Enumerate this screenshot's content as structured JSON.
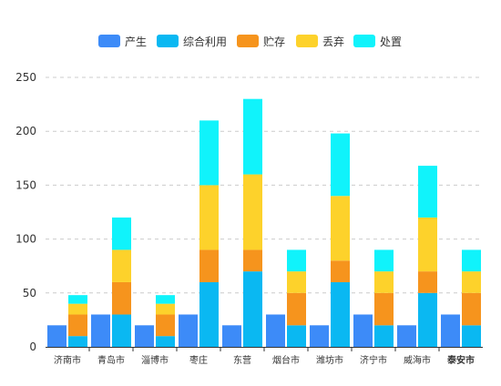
{
  "chart_data": {
    "type": "bar",
    "stacked": true,
    "legend_position": "top",
    "grid": true,
    "colors": {
      "produce": "#3d8bf8",
      "comprehensive": "#0ab8f2",
      "storage": "#f6941d",
      "discard": "#fdd22b",
      "disposal": "#10f3fb"
    },
    "legend": [
      {
        "key": "produce",
        "label": "产生"
      },
      {
        "key": "comprehensive",
        "label": "综合利用"
      },
      {
        "key": "storage",
        "label": "贮存"
      },
      {
        "key": "discard",
        "label": "丢弃"
      },
      {
        "key": "disposal",
        "label": "处置"
      }
    ],
    "categories": [
      "济南市",
      "青岛市",
      "淄博市",
      "枣庄",
      "东营",
      "烟台市",
      "潍坊市",
      "济宁市",
      "威海市",
      "泰安市"
    ],
    "highlight_category": "泰安市",
    "ylim": [
      0,
      250
    ],
    "yticks": [
      0,
      50,
      100,
      150,
      200,
      250
    ],
    "series": [
      {
        "name": "产生",
        "key": "produce",
        "stack": "a",
        "values": [
          20,
          30,
          20,
          30,
          20,
          30,
          20,
          30,
          20,
          30
        ]
      },
      {
        "name": "综合利用",
        "key": "comprehensive",
        "stack": "b",
        "values": [
          10,
          30,
          10,
          60,
          70,
          20,
          60,
          20,
          50,
          20
        ]
      },
      {
        "name": "贮存",
        "key": "storage",
        "stack": "b",
        "values": [
          20,
          30,
          20,
          30,
          20,
          30,
          20,
          30,
          20,
          30
        ]
      },
      {
        "name": "丢弃",
        "key": "discard",
        "stack": "b",
        "values": [
          10,
          30,
          10,
          60,
          70,
          20,
          60,
          20,
          50,
          20
        ]
      },
      {
        "name": "处置",
        "key": "disposal",
        "stack": "b",
        "values": [
          8,
          30,
          8,
          60,
          70,
          20,
          58,
          20,
          48,
          20
        ]
      }
    ]
  }
}
